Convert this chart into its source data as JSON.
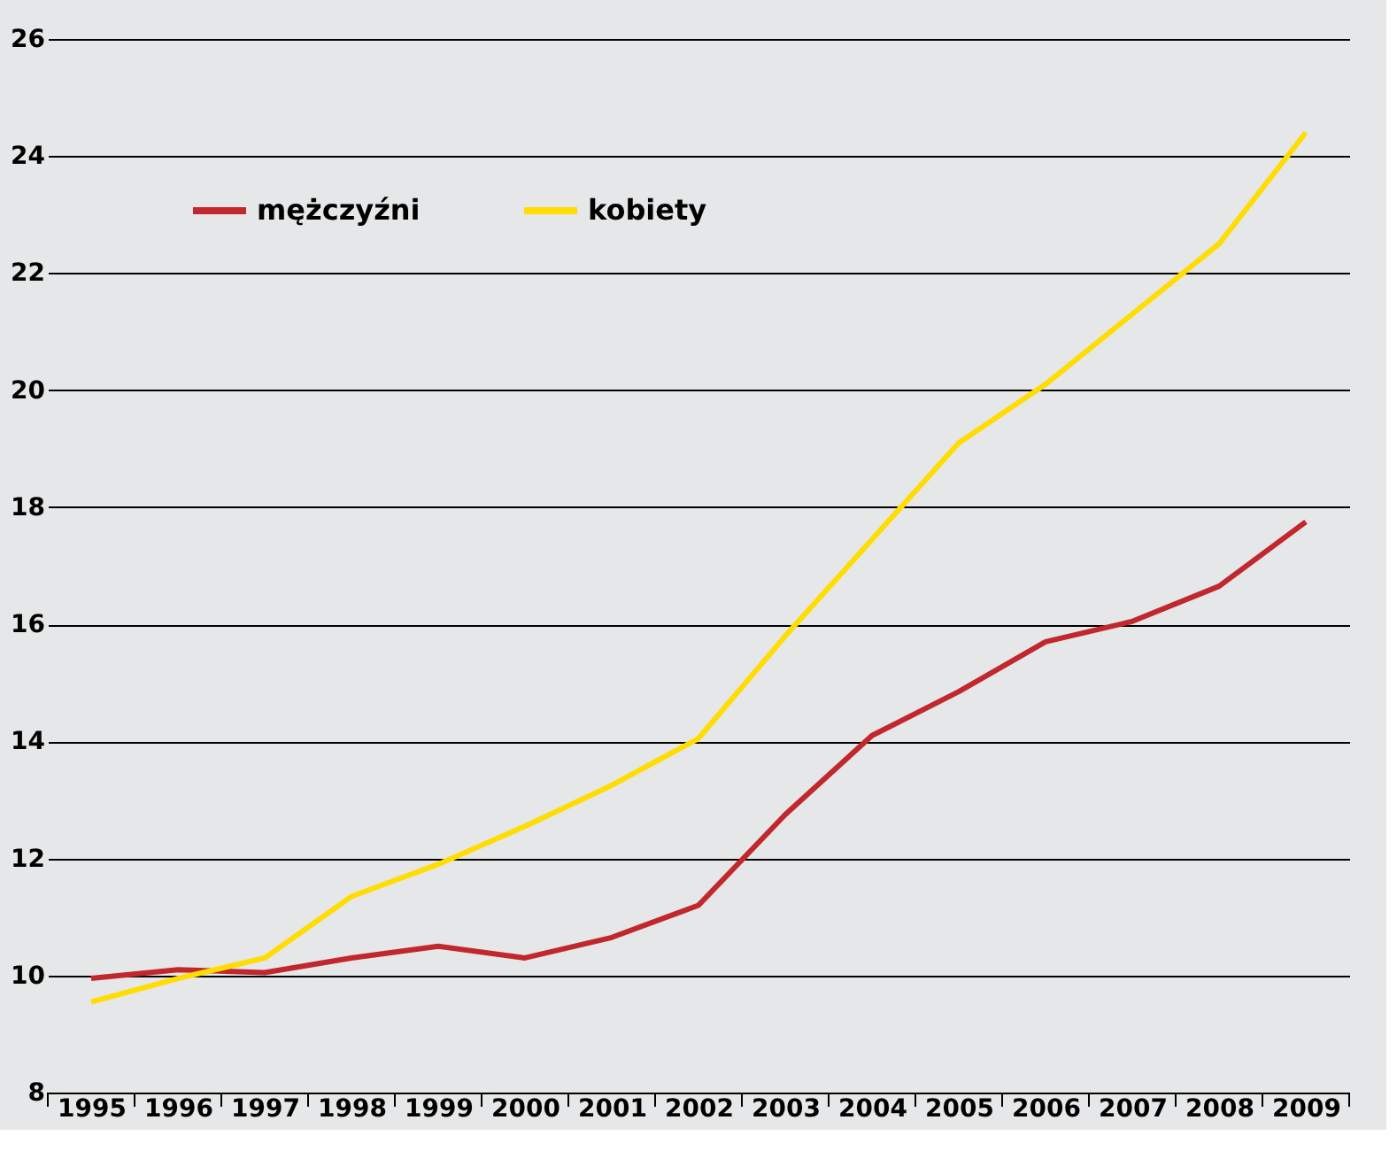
{
  "chart_data": {
    "type": "line",
    "categories": [
      "1995",
      "1996",
      "1997",
      "1998",
      "1999",
      "2000",
      "2001",
      "2002",
      "2003",
      "2004",
      "2005",
      "2006",
      "2007",
      "2008",
      "2009"
    ],
    "series": [
      {
        "name": "mężczyźni",
        "color": "#c1272d",
        "values": [
          9.95,
          10.1,
          10.05,
          10.3,
          10.5,
          10.3,
          10.65,
          11.2,
          12.75,
          14.1,
          14.85,
          15.7,
          16.05,
          16.65,
          17.75
        ]
      },
      {
        "name": "kobiety",
        "color": "#ffdd00",
        "values": [
          9.55,
          9.95,
          10.3,
          11.35,
          11.9,
          12.55,
          13.25,
          14.05,
          15.8,
          17.45,
          19.1,
          20.1,
          21.3,
          22.5,
          24.4
        ]
      }
    ],
    "ylim": [
      8,
      26
    ],
    "yticks": [
      8,
      10,
      12,
      14,
      16,
      18,
      20,
      22,
      24,
      26
    ],
    "grid": "y",
    "legend": "top left",
    "marker": "none",
    "line_style": "solid"
  }
}
